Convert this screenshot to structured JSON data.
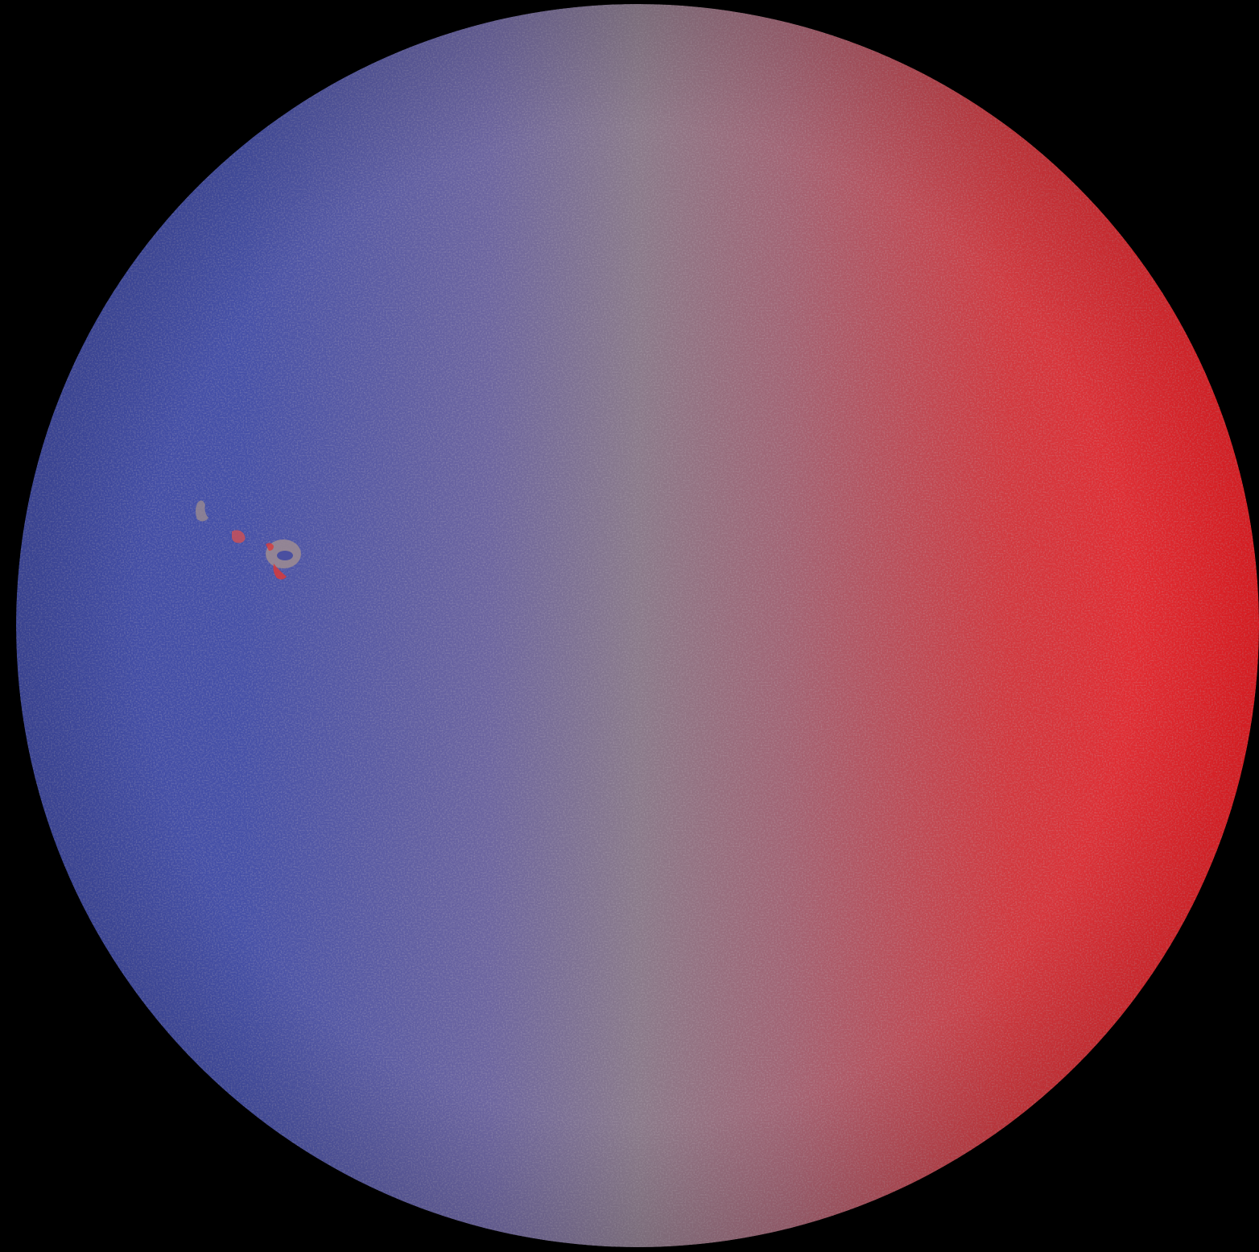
{
  "image": {
    "subject": "solar-disk-dopplergram",
    "background_color": "#000000",
    "colors": {
      "approaching_blue": "#3f4aa3",
      "mid_gray": "#8a7a86",
      "receding_red": "#ef1f24",
      "active_region_accent": "#d83a3a"
    }
  }
}
